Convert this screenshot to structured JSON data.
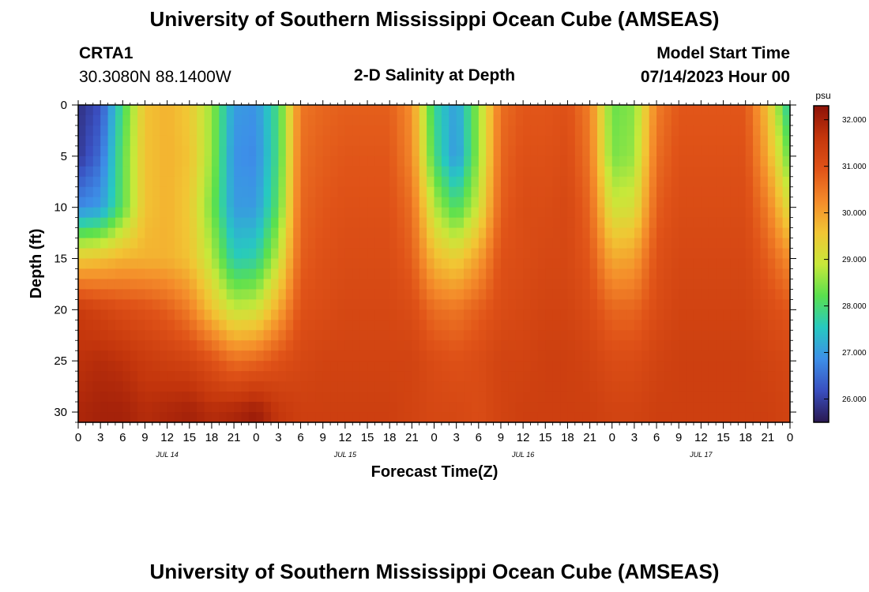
{
  "header": {
    "title": "University of Southern Mississippi Ocean Cube (AMSEAS)",
    "station": "CRTA1",
    "coordinates": "30.3080N  88.1400W",
    "plot_title": "2-D Salinity at Depth",
    "start_label": "Model Start Time",
    "start_value": "07/14/2023 Hour 00"
  },
  "footer": {
    "title": "University of Southern Mississippi Ocean Cube (AMSEAS)"
  },
  "chart_data": {
    "type": "heatmap",
    "title": "2-D Salinity at Depth",
    "xlabel": "Forecast Time(Z)",
    "ylabel": "Depth (ft)",
    "xlim": [
      0,
      96
    ],
    "ylim": [
      31,
      0
    ],
    "x_ticks": [
      0,
      3,
      6,
      9,
      12,
      15,
      18,
      21,
      24,
      27,
      30,
      33,
      36,
      39,
      42,
      45,
      48,
      51,
      54,
      57,
      60,
      63,
      66,
      69,
      72,
      75,
      78,
      81,
      84,
      87,
      90,
      93,
      96
    ],
    "x_tick_labels": [
      "0",
      "3",
      "6",
      "9",
      "12",
      "15",
      "18",
      "21",
      "0",
      "3",
      "6",
      "9",
      "12",
      "15",
      "18",
      "21",
      "0",
      "3",
      "6",
      "9",
      "12",
      "15",
      "18",
      "21",
      "0",
      "3",
      "6",
      "9",
      "12",
      "15",
      "18",
      "21",
      "0"
    ],
    "day_labels": [
      {
        "x": 12,
        "label": "JUL 14"
      },
      {
        "x": 36,
        "label": "JUL 15"
      },
      {
        "x": 60,
        "label": "JUL 16"
      },
      {
        "x": 84,
        "label": "JUL 17"
      }
    ],
    "y_ticks": [
      0,
      5,
      10,
      15,
      20,
      25,
      30
    ],
    "y_tick_labels": [
      "0",
      "5",
      "10",
      "15",
      "20",
      "25",
      "30"
    ],
    "colorbar": {
      "unit": "psu",
      "min": 25.5,
      "max": 32.3,
      "ticks": [
        26,
        27,
        28,
        29,
        30,
        31,
        32
      ],
      "tick_labels": [
        "26.000",
        "27.000",
        "28.000",
        "29.000",
        "30.000",
        "31.000",
        "32.000"
      ],
      "colors": [
        "#2a1850",
        "#3a4fc0",
        "#3d8fe8",
        "#27c9c0",
        "#5ae04e",
        "#c8e83a",
        "#f2c534",
        "#f48a2a",
        "#e05318",
        "#c4360c",
        "#8c1208"
      ]
    },
    "x_values": [
      0,
      3,
      6,
      9,
      12,
      15,
      18,
      21,
      24,
      27,
      30,
      33,
      36,
      39,
      42,
      45,
      48,
      51,
      54,
      57,
      60,
      63,
      66,
      69,
      72,
      75,
      78,
      81,
      84,
      87,
      90,
      93,
      96
    ],
    "depth_values": [
      0,
      5,
      10,
      15,
      20,
      25,
      30
    ],
    "salinity": [
      [
        25.8,
        26.2,
        28.0,
        29.6,
        29.8,
        29.5,
        28.6,
        27.0,
        26.9,
        28.0,
        30.5,
        30.7,
        30.8,
        30.8,
        30.8,
        30.2,
        27.8,
        27.0,
        28.6,
        30.6,
        30.9,
        30.9,
        31.0,
        30.4,
        28.3,
        28.5,
        30.4,
        30.9,
        30.9,
        30.9,
        30.9,
        29.6,
        27.5
      ],
      [
        25.9,
        26.5,
        28.2,
        29.6,
        29.8,
        29.6,
        28.6,
        26.9,
        26.8,
        28.0,
        30.6,
        30.8,
        30.9,
        30.9,
        30.9,
        30.3,
        28.0,
        26.9,
        28.6,
        30.7,
        31.0,
        31.0,
        31.1,
        30.5,
        28.4,
        28.6,
        30.6,
        31.0,
        31.0,
        31.0,
        31.0,
        29.9,
        28.2
      ],
      [
        26.8,
        27.0,
        28.2,
        29.6,
        29.8,
        29.5,
        28.4,
        27.0,
        27.0,
        28.2,
        30.7,
        30.9,
        31.0,
        31.0,
        31.0,
        30.6,
        28.8,
        28.0,
        29.0,
        30.8,
        31.1,
        31.1,
        31.2,
        30.7,
        29.0,
        29.1,
        30.8,
        31.1,
        31.1,
        31.1,
        31.1,
        30.4,
        29.1
      ],
      [
        29.5,
        29.6,
        29.8,
        29.8,
        29.8,
        29.6,
        28.8,
        27.6,
        27.7,
        28.9,
        30.8,
        31.0,
        31.1,
        31.1,
        31.1,
        30.8,
        29.7,
        29.4,
        30.0,
        31.0,
        31.1,
        31.2,
        31.2,
        30.9,
        29.9,
        30.0,
        31.0,
        31.2,
        31.2,
        31.2,
        31.2,
        30.8,
        30.2
      ],
      [
        31.5,
        31.3,
        31.1,
        31.0,
        30.8,
        30.4,
        29.6,
        28.9,
        29.0,
        29.9,
        31.0,
        31.1,
        31.2,
        31.2,
        31.2,
        31.1,
        30.6,
        30.5,
        30.8,
        31.1,
        31.2,
        31.3,
        31.3,
        31.1,
        30.7,
        30.7,
        31.1,
        31.3,
        31.3,
        31.3,
        31.3,
        31.1,
        30.9
      ],
      [
        31.7,
        31.8,
        31.7,
        31.5,
        31.4,
        31.3,
        31.0,
        30.6,
        30.7,
        31.0,
        31.2,
        31.3,
        31.3,
        31.3,
        31.3,
        31.3,
        31.1,
        31.0,
        31.1,
        31.3,
        31.3,
        31.4,
        31.4,
        31.3,
        31.1,
        31.1,
        31.3,
        31.4,
        31.4,
        31.4,
        31.4,
        31.3,
        31.2
      ],
      [
        31.9,
        32.0,
        32.0,
        31.8,
        31.9,
        32.0,
        31.8,
        31.9,
        32.1,
        31.6,
        31.4,
        31.4,
        31.4,
        31.4,
        31.4,
        31.3,
        31.2,
        31.2,
        31.1,
        31.3,
        31.4,
        31.4,
        31.4,
        31.4,
        31.3,
        31.3,
        31.4,
        31.4,
        31.4,
        31.4,
        31.4,
        31.4,
        31.3
      ]
    ]
  }
}
